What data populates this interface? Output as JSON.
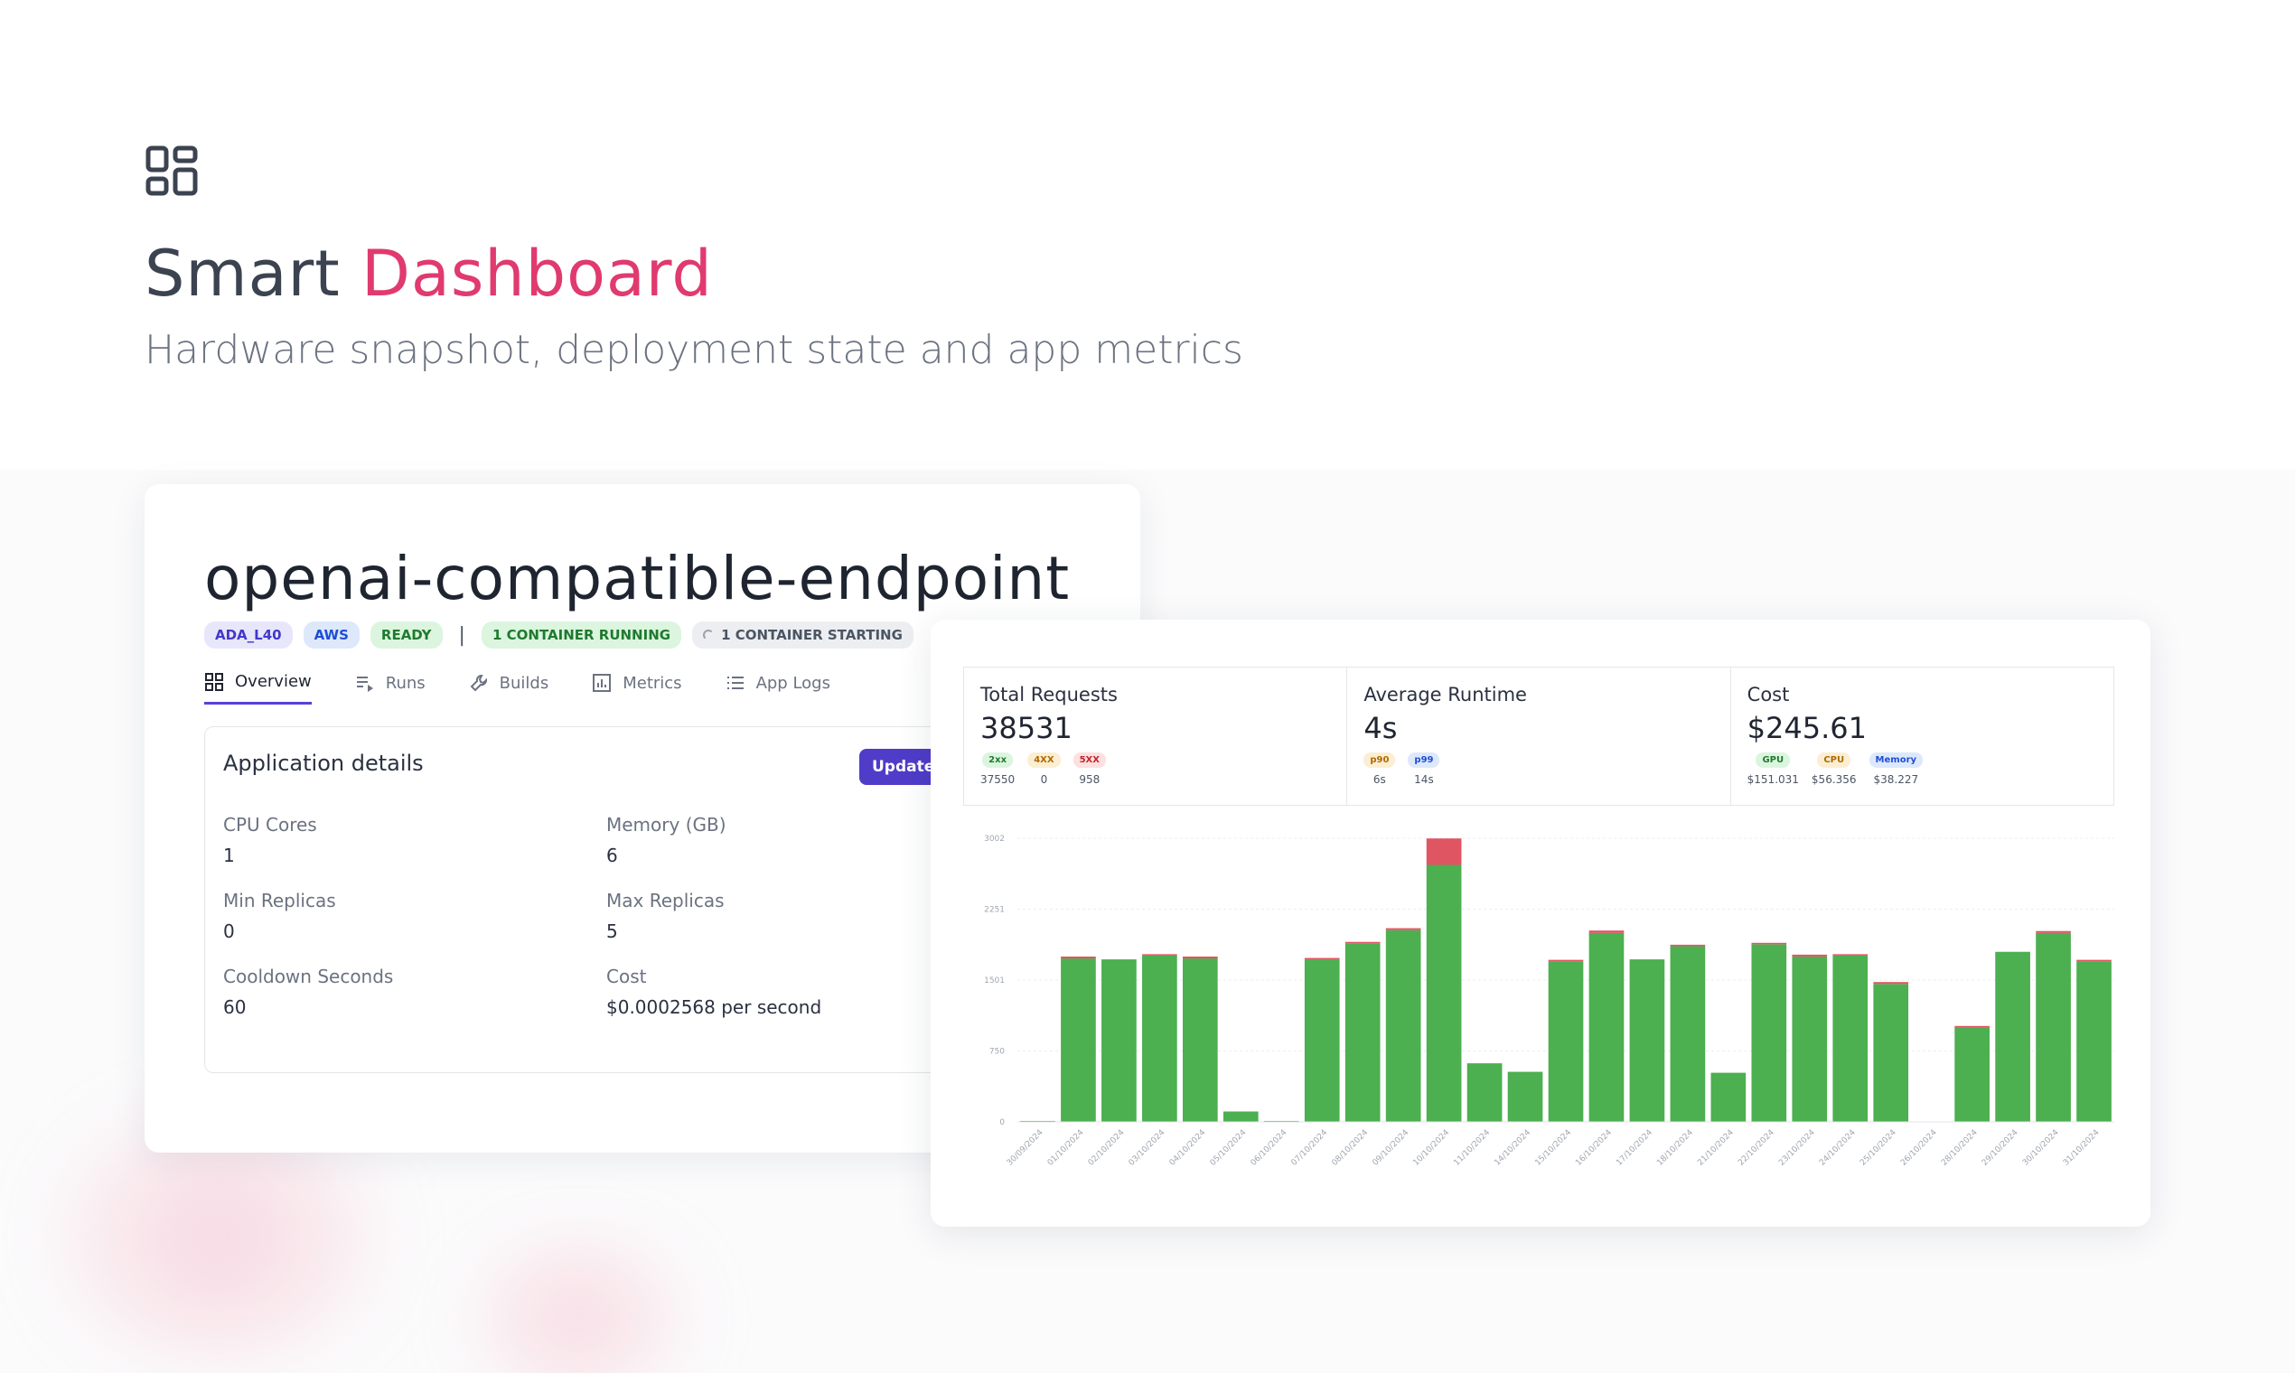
{
  "hero": {
    "icon": "dashboard-grid-icon",
    "title_part1": "Smart",
    "title_part2": "Dashboard",
    "subtitle": "Hardware snapshot, deployment state and app metrics",
    "accent_color": "#e03a6f"
  },
  "app": {
    "name": "openai-compatible-endpoint",
    "badges": {
      "gpu": "ADA_L40",
      "cloud": "AWS",
      "status": "READY",
      "separator": "|",
      "running": "1 CONTAINER RUNNING",
      "starting": "1 CONTAINER STARTING"
    },
    "tabs": {
      "overview": "Overview",
      "runs": "Runs",
      "builds": "Builds",
      "metrics": "Metrics",
      "logs": "App Logs"
    },
    "details": {
      "title": "Application details",
      "update_button": "Update A",
      "cpu_label": "CPU Cores",
      "cpu_value": "1",
      "memory_label": "Memory (GB)",
      "memory_value": "6",
      "min_label": "Min Replicas",
      "min_value": "0",
      "max_label": "Max Replicas",
      "max_value": "5",
      "cooldown_label": "Cooldown Seconds",
      "cooldown_value": "60",
      "cost_label": "Cost",
      "cost_value": "$0.0002568 per second"
    }
  },
  "metrics": {
    "requests": {
      "label": "Total Requests",
      "value": "38531",
      "chips": [
        {
          "tag": "2xx",
          "value": "37550"
        },
        {
          "tag": "4XX",
          "value": "0"
        },
        {
          "tag": "5XX",
          "value": "958"
        }
      ]
    },
    "runtime": {
      "label": "Average Runtime",
      "value": "4s",
      "chips": [
        {
          "tag": "p90",
          "value": "6s"
        },
        {
          "tag": "p99",
          "value": "14s"
        }
      ]
    },
    "cost": {
      "label": "Cost",
      "value": "$245.61",
      "chips": [
        {
          "tag": "GPU",
          "value": "$151.031"
        },
        {
          "tag": "CPU",
          "value": "$56.356"
        },
        {
          "tag": "Memory",
          "value": "$38.227"
        }
      ]
    }
  },
  "chart_data": {
    "type": "bar",
    "stacked": true,
    "y_ticks": [
      "0",
      "750",
      "1501",
      "2251",
      "3002"
    ],
    "ylim": [
      0,
      3002
    ],
    "categories": [
      "30/09/2024",
      "01/10/2024",
      "02/10/2024",
      "03/10/2024",
      "04/10/2024",
      "05/10/2024",
      "06/10/2024",
      "07/10/2024",
      "08/10/2024",
      "09/10/2024",
      "10/10/2024",
      "11/10/2024",
      "14/10/2024",
      "15/10/2024",
      "16/10/2024",
      "17/10/2024",
      "18/10/2024",
      "21/10/2024",
      "22/10/2024",
      "23/10/2024",
      "24/10/2024",
      "25/10/2024",
      "26/10/2024",
      "28/10/2024",
      "29/10/2024",
      "30/10/2024",
      "31/10/2024"
    ],
    "series": [
      {
        "color": "#4caf50",
        "values": [
          10,
          1730,
          1720,
          1760,
          1730,
          110,
          10,
          1720,
          1890,
          2030,
          2720,
          620,
          530,
          1700,
          2000,
          1720,
          1860,
          520,
          1880,
          1750,
          1760,
          1460,
          0,
          1000,
          1800,
          2000,
          1700
        ]
      },
      {
        "color": "#e05562",
        "values": [
          0,
          20,
          0,
          15,
          20,
          0,
          0,
          15,
          15,
          20,
          280,
          0,
          0,
          15,
          25,
          0,
          15,
          0,
          15,
          20,
          15,
          20,
          0,
          15,
          0,
          20,
          15
        ]
      }
    ],
    "grid": true
  }
}
